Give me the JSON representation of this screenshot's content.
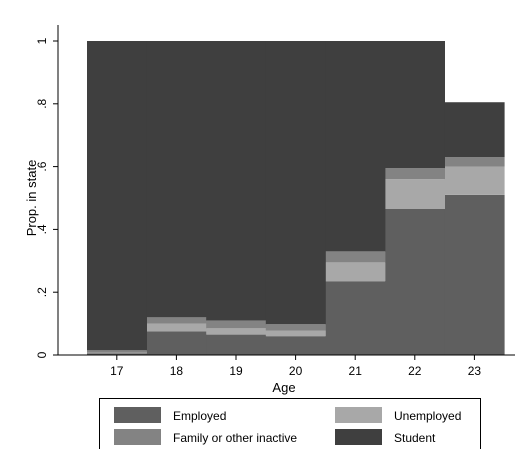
{
  "chart_data": {
    "type": "area",
    "subtype": "stacked-step",
    "title": "",
    "xlabel": "Age",
    "ylabel": "Prop. in state",
    "categories": [
      "17",
      "18",
      "19",
      "20",
      "21",
      "22",
      "23"
    ],
    "ylim": [
      0,
      1
    ],
    "yticks": [
      {
        "value": 0,
        "label": "0"
      },
      {
        "value": 0.2,
        "label": ".2"
      },
      {
        "value": 0.4,
        "label": ".4"
      },
      {
        "value": 0.6,
        "label": ".6"
      },
      {
        "value": 0.8,
        "label": ".8"
      },
      {
        "value": 1,
        "label": "1"
      }
    ],
    "grid": false,
    "legend_position": "bottom",
    "series": [
      {
        "name": "Employed",
        "color": "#5f5f5f",
        "values": [
          0.005,
          0.075,
          0.065,
          0.06,
          0.235,
          0.465,
          0.51
        ]
      },
      {
        "name": "Unemployed",
        "color": "#a8a8a8",
        "values": [
          0.003,
          0.025,
          0.02,
          0.018,
          0.06,
          0.095,
          0.09
        ]
      },
      {
        "name": "Family or other inactive",
        "color": "#838383",
        "values": [
          0.007,
          0.02,
          0.025,
          0.02,
          0.035,
          0.035,
          0.03
        ]
      },
      {
        "name": "Student",
        "color": "#3f3f3f",
        "values": [
          0.985,
          0.88,
          0.89,
          0.902,
          0.67,
          0.405,
          0.175
        ]
      }
    ],
    "legend_order": [
      "Employed",
      "Unemployed",
      "Family or other inactive",
      "Student"
    ]
  }
}
